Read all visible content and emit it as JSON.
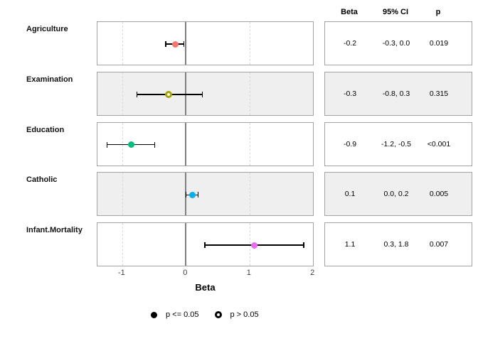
{
  "chart_data": {
    "type": "scatter",
    "subtype": "forest-plot",
    "title": "",
    "xlabel": "Beta",
    "xticks": [
      -1,
      0,
      1,
      2
    ],
    "xlim": [
      -1.39,
      2.02
    ],
    "reference_line": 0,
    "dashed_gridlines": [
      -1,
      1
    ],
    "grid": "off",
    "legend_position": "bottom-center",
    "table_headers": [
      "Beta",
      "95% CI",
      "p"
    ],
    "categories": [
      "Agriculture",
      "Examination",
      "Education",
      "Catholic",
      "Infant.Mortality"
    ],
    "rows": [
      {
        "label": "Agriculture",
        "estimate": -0.17,
        "ci_low": -0.32,
        "ci_high": -0.03,
        "beta": "-0.2",
        "ci": "-0.3, 0.0",
        "p": "0.019",
        "color": "#F8766D",
        "open_point": false,
        "shaded": false
      },
      {
        "label": "Examination",
        "estimate": -0.27,
        "ci_low": -0.77,
        "ci_high": 0.26,
        "beta": "-0.3",
        "ci": "-0.8, 0.3",
        "p": "0.315",
        "color": "#A3A500",
        "open_point": true,
        "shaded": true
      },
      {
        "label": "Education",
        "estimate": -0.86,
        "ci_low": -1.24,
        "ci_high": -0.49,
        "beta": "-0.9",
        "ci": "-1.2, -0.5",
        "p": "<0.001",
        "color": "#00BF7D",
        "open_point": false,
        "shaded": false
      },
      {
        "label": "Catholic",
        "estimate": 0.1,
        "ci_low": 0.0,
        "ci_high": 0.19,
        "beta": "0.1",
        "ci": "0.0, 0.2",
        "p": "0.005",
        "color": "#00B0F6",
        "open_point": false,
        "shaded": true
      },
      {
        "label": "Infant.Mortality",
        "estimate": 1.08,
        "ci_low": 0.3,
        "ci_high": 1.85,
        "beta": "1.1",
        "ci": "0.3, 1.8",
        "p": "0.007",
        "color": "#E76BF3",
        "open_point": false,
        "shaded": false
      }
    ],
    "legend": [
      {
        "symbol": "filled-dot",
        "label": "p <= 0.05"
      },
      {
        "symbol": "open-dot",
        "label": "p > 0.05"
      }
    ],
    "colors": {
      "shaded_row_bg": "#efefef",
      "panel_border": "#a3a3a3",
      "zero_line": "#7f7f7f",
      "dashed_grid": "#d8d8d8",
      "errorbar": "#000000"
    }
  }
}
